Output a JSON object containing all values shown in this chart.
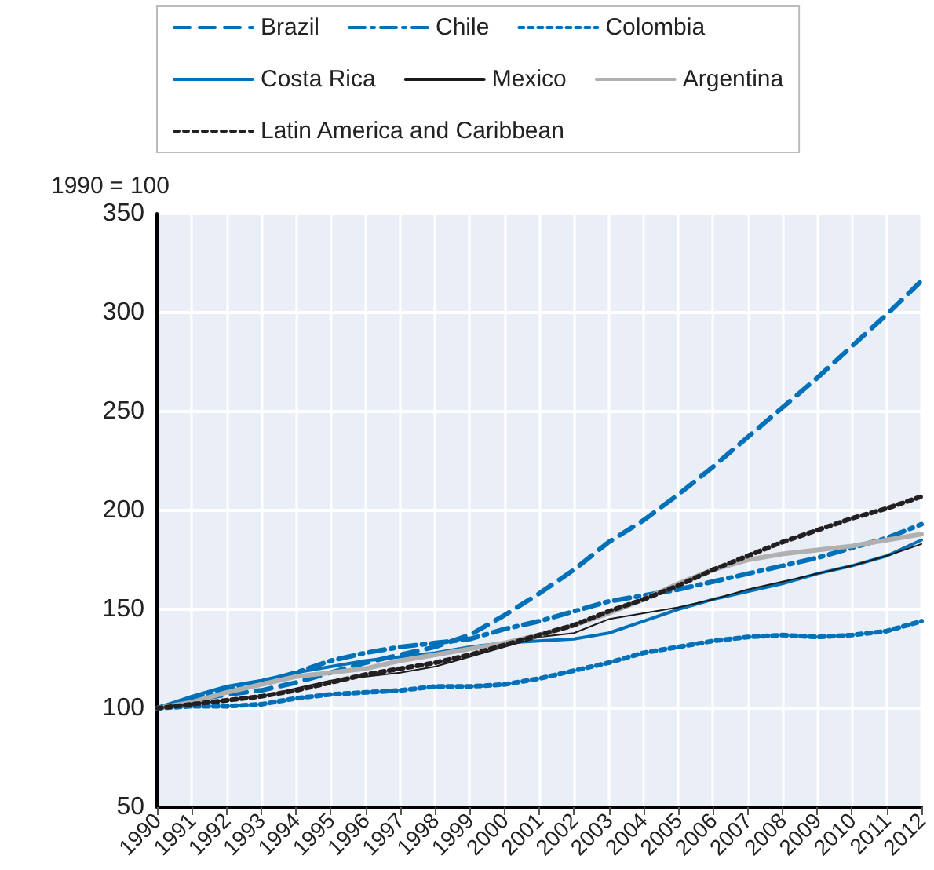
{
  "chart_data": {
    "type": "line",
    "ylabel": "1990 = 100",
    "categories": [
      "1990",
      "1991",
      "1992",
      "1993",
      "1994",
      "1995",
      "1996",
      "1997",
      "1998",
      "1999",
      "2000",
      "2001",
      "2002",
      "2003",
      "2004",
      "2005",
      "2006",
      "2007",
      "2008",
      "2009",
      "2010",
      "2011",
      "2012"
    ],
    "series": [
      {
        "name": "Brazil",
        "color": "#0070b8",
        "line_style": "dashed",
        "values": [
          100,
          104,
          107,
          109,
          113,
          118,
          123,
          127,
          131,
          137,
          147,
          158,
          170,
          184,
          195,
          208,
          222,
          237,
          252,
          267,
          283,
          299,
          316
        ]
      },
      {
        "name": "Chile",
        "color": "#0070b8",
        "line_style": "dashdot",
        "values": [
          100,
          105,
          110,
          113,
          118,
          124,
          128,
          131,
          133,
          135,
          140,
          144,
          149,
          154,
          157,
          160,
          164,
          168,
          172,
          176,
          181,
          186,
          193
        ]
      },
      {
        "name": "Colombia",
        "color": "#0070b8",
        "line_style": "dotted",
        "values": [
          100,
          101,
          101,
          102,
          105,
          107,
          108,
          109,
          111,
          111,
          112,
          115,
          119,
          123,
          128,
          131,
          134,
          136,
          137,
          136,
          137,
          139,
          144
        ]
      },
      {
        "name": "Costa Rica",
        "color": "#0070b8",
        "line_style": "solid",
        "values": [
          100,
          106,
          111,
          114,
          118,
          121,
          124,
          126,
          128,
          131,
          133,
          134,
          135,
          138,
          144,
          150,
          155,
          159,
          163,
          168,
          172,
          177,
          185
        ]
      },
      {
        "name": "Mexico",
        "color": "#1a1a1a",
        "line_style": "solid",
        "values": [
          100,
          102,
          104,
          106,
          110,
          114,
          116,
          118,
          121,
          126,
          131,
          136,
          138,
          145,
          148,
          151,
          155,
          160,
          164,
          168,
          172,
          177,
          183
        ]
      },
      {
        "name": "Argentina",
        "color": "#b0b0b0",
        "line_style": "solid",
        "values": [
          100,
          103,
          108,
          112,
          116,
          118,
          120,
          124,
          127,
          130,
          133,
          137,
          142,
          148,
          155,
          163,
          170,
          175,
          178,
          180,
          182,
          185,
          188
        ]
      },
      {
        "name": "Latin America and Caribbean",
        "color": "#231f20",
        "line_style": "dotted",
        "values": [
          100,
          102,
          104,
          106,
          109,
          113,
          117,
          120,
          123,
          127,
          132,
          137,
          142,
          149,
          155,
          162,
          170,
          177,
          184,
          190,
          196,
          201,
          207
        ]
      }
    ],
    "ylim": [
      50,
      350
    ],
    "yticks": [
      50,
      100,
      150,
      200,
      250,
      300,
      350
    ],
    "grid": true,
    "legend": "top",
    "marker": "none"
  }
}
